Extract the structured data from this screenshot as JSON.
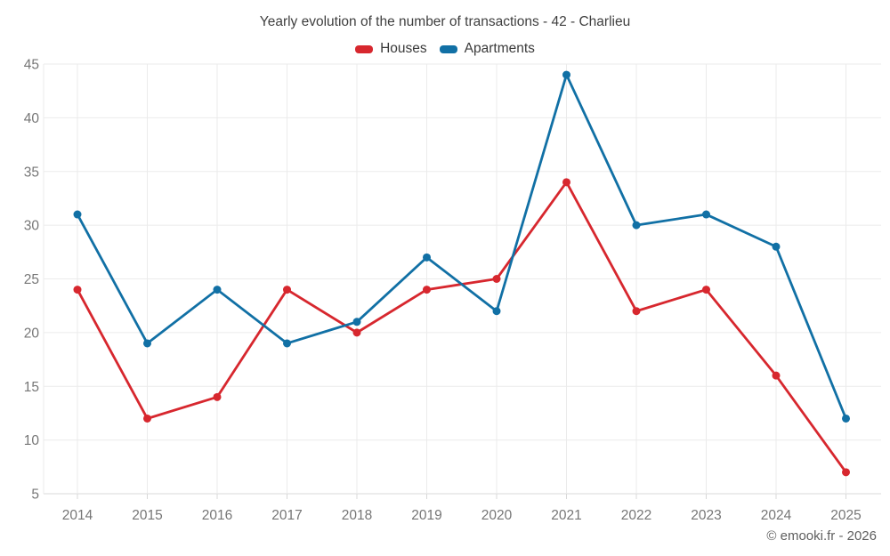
{
  "chart_data": {
    "type": "line",
    "title": "Yearly evolution of the number of transactions - 42 - Charlieu",
    "categories": [
      "2014",
      "2015",
      "2016",
      "2017",
      "2018",
      "2019",
      "2020",
      "2021",
      "2022",
      "2023",
      "2024",
      "2025"
    ],
    "series": [
      {
        "name": "Houses",
        "color": "#d7272e",
        "values": [
          24,
          12,
          14,
          24,
          20,
          24,
          25,
          34,
          22,
          24,
          16,
          7
        ]
      },
      {
        "name": "Apartments",
        "color": "#1170a5",
        "values": [
          31,
          19,
          24,
          19,
          21,
          27,
          22,
          44,
          30,
          31,
          28,
          12
        ]
      }
    ],
    "xlabel": "",
    "ylabel": "",
    "ylim": [
      5,
      45
    ],
    "yticks": [
      5,
      10,
      15,
      20,
      25,
      30,
      35,
      40,
      45
    ],
    "grid": true,
    "legend_position": "top-center"
  },
  "footer": {
    "text": "© emooki.fr - 2026"
  },
  "colors": {
    "grid": "#ebebeb",
    "axis": "#d8d8d8",
    "axis_label": "#767676",
    "title_text": "#3f3f3f",
    "legend_text": "#3a3a3a",
    "footer_text": "#5f5f5f",
    "background": "#ffffff"
  }
}
